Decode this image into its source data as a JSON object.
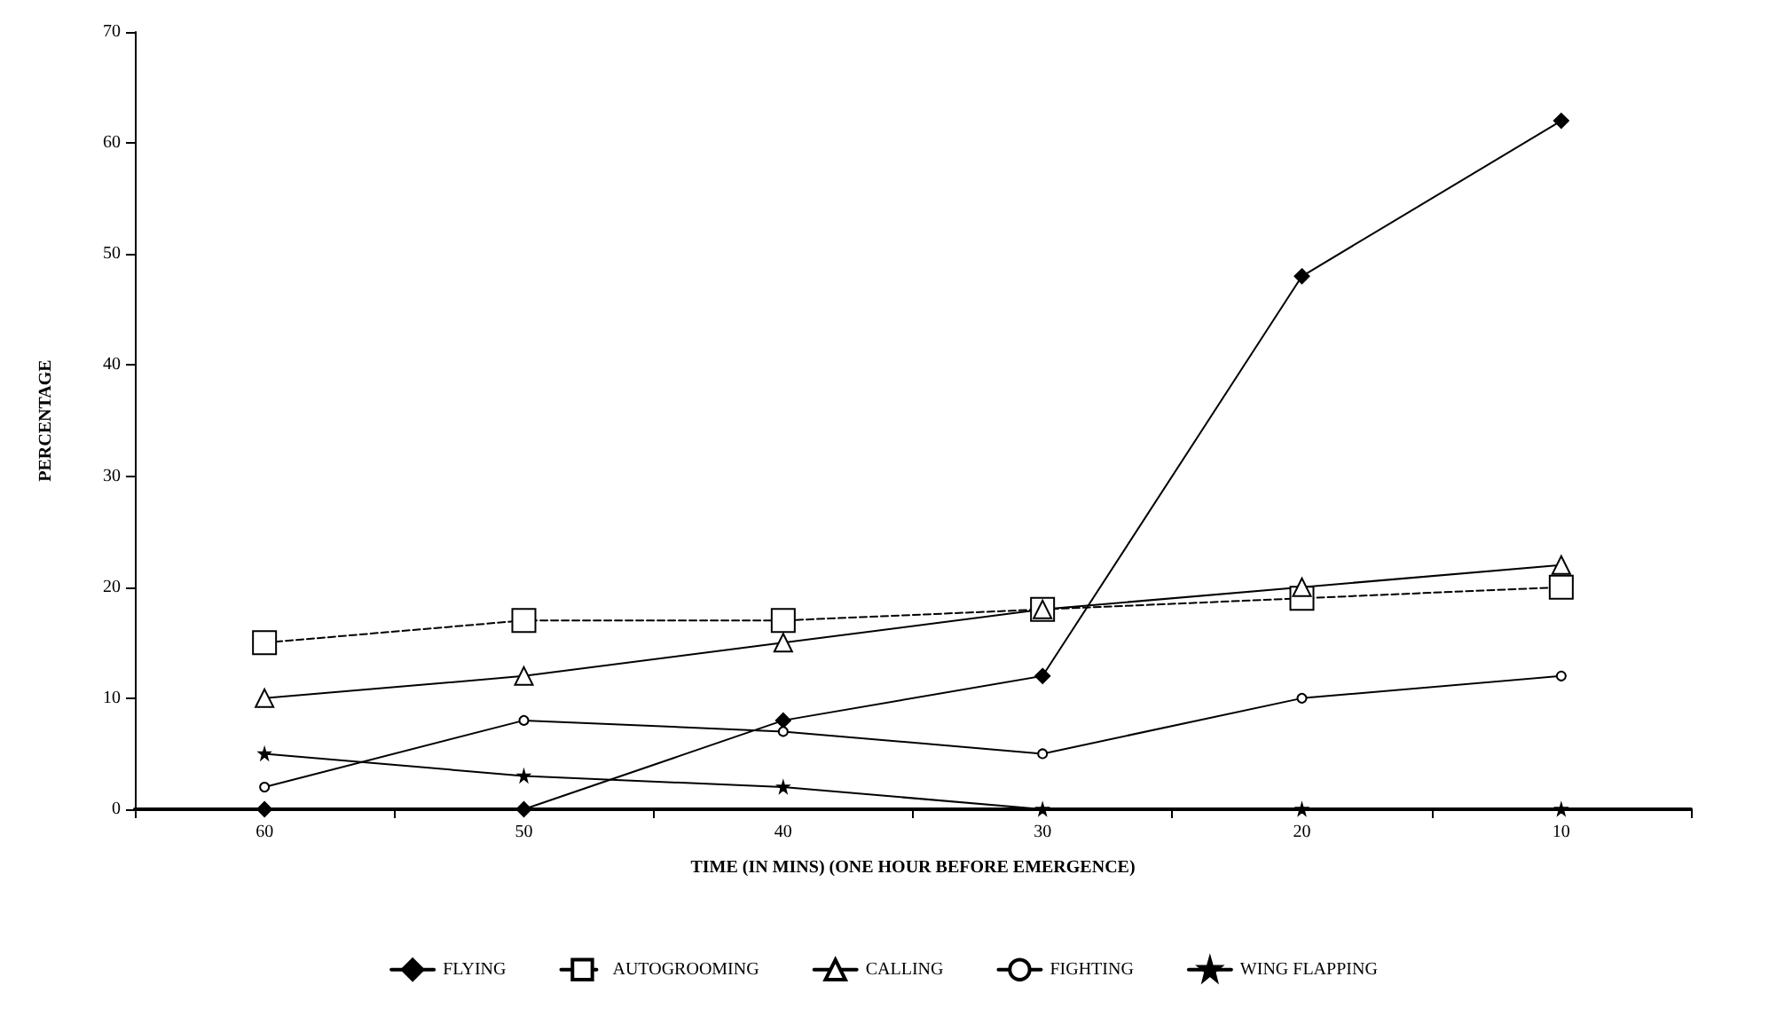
{
  "chart_data": {
    "type": "line",
    "xlabel": "TIME (IN MINS) (ONE HOUR BEFORE EMERGENCE)",
    "ylabel": "PERCENTAGE",
    "categories": [
      "60",
      "50",
      "40",
      "30",
      "20",
      "10"
    ],
    "series": [
      {
        "name": "FLYING",
        "color": "#000000",
        "marker": "diamond",
        "line_style": "solid",
        "values": [
          0,
          0,
          8,
          12,
          48,
          62
        ]
      },
      {
        "name": "AUTOGROOMING",
        "color": "#000000",
        "marker": "square",
        "line_style": "dashed",
        "values": [
          15,
          17,
          17,
          18,
          19,
          20
        ]
      },
      {
        "name": "CALLING",
        "color": "#000000",
        "marker": "triangle",
        "line_style": "solid",
        "values": [
          10,
          12,
          15,
          18,
          20,
          22
        ]
      },
      {
        "name": "FIGHTING",
        "color": "#000000",
        "marker": "circle",
        "line_style": "solid",
        "values": [
          2,
          8,
          7,
          5,
          10,
          12
        ]
      },
      {
        "name": "WING FLAPPING",
        "color": "#000000",
        "marker": "star",
        "line_style": "solid",
        "values": [
          5,
          3,
          2,
          0,
          0,
          0
        ]
      }
    ],
    "ylim": [
      0,
      70
    ],
    "yticks": [
      0,
      10,
      20,
      30,
      40,
      50,
      60,
      70
    ],
    "grid": false,
    "legend": "bottom"
  }
}
